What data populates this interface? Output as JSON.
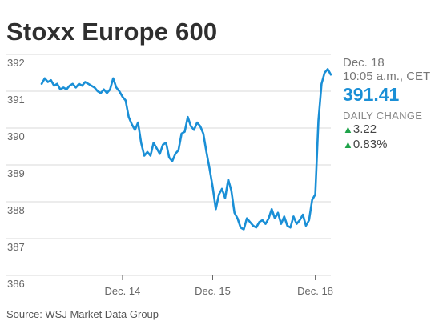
{
  "chart_data": {
    "type": "line",
    "title": "Stoxx Europe 600",
    "ylim": [
      386,
      392
    ],
    "yticks": [
      "386",
      "387",
      "388",
      "389",
      "390",
      "391",
      "392"
    ],
    "xticks": [
      "Dec. 14",
      "Dec. 15",
      "Dec. 18"
    ],
    "grid": true,
    "line_color": "#1a8fd6",
    "series": [
      {
        "values": [
          391.2,
          391.35,
          391.25,
          391.3,
          391.15,
          391.2,
          391.05,
          391.1,
          391.05,
          391.15,
          391.2,
          391.1,
          391.2,
          391.15,
          391.25,
          391.2,
          391.15,
          391.1,
          391.0,
          390.95,
          391.05,
          390.95,
          391.05,
          391.35,
          391.1,
          391.0,
          390.85,
          390.75,
          390.3,
          390.1,
          389.95,
          390.15,
          389.6,
          389.25,
          389.35,
          389.25,
          389.6,
          389.45,
          389.3,
          389.55,
          389.6,
          389.2,
          389.1,
          389.3,
          389.4,
          389.85,
          389.9,
          390.3,
          390.05,
          389.95,
          390.15,
          390.05,
          389.85,
          389.35,
          388.9,
          388.4,
          387.8,
          388.2,
          388.35,
          388.1,
          388.6,
          388.3,
          387.7,
          387.55,
          387.3,
          387.25,
          387.55,
          387.45,
          387.35,
          387.3,
          387.45,
          387.5,
          387.4,
          387.55,
          387.8,
          387.55,
          387.7,
          387.4,
          387.6,
          387.35,
          387.3,
          387.6,
          387.4,
          387.5,
          387.65,
          387.35,
          387.5,
          388.05,
          388.2,
          390.2,
          391.2,
          391.5,
          391.6,
          391.45
        ]
      }
    ]
  },
  "panel": {
    "date": "Dec. 18",
    "time": "10:05 a.m., CET",
    "price": "391.41",
    "change_label": "DAILY CHANGE",
    "change_abs": "3.22",
    "change_pct": "0.83%",
    "up_color": "#1fa34a"
  },
  "source": "Source: WSJ Market Data Group"
}
